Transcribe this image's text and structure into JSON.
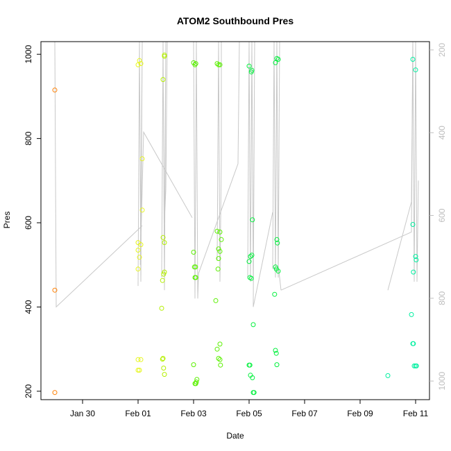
{
  "chart_data": {
    "type": "scatter",
    "title": "ATOM2 Southbound Pres",
    "xlabel": "Date",
    "ylabel": "Pres",
    "x_tick_labels": [
      "Jan 30",
      "Feb 01",
      "Feb 03",
      "Feb 05",
      "Feb 07",
      "Feb 09",
      "Feb 11"
    ],
    "x_tick_values": [
      0,
      2,
      4,
      6,
      8,
      10,
      12
    ],
    "y_tick_labels": [
      "200",
      "400",
      "600",
      "800",
      "1000"
    ],
    "y_tick_values": [
      200,
      400,
      600,
      800,
      1000
    ],
    "y2_tick_labels": [
      "200",
      "400",
      "600",
      "800",
      "1000"
    ],
    "y2_tick_values": [
      200,
      400,
      600,
      800,
      1000
    ],
    "xlim": [
      -1.5,
      12.5
    ],
    "ylim": [
      180,
      1030
    ],
    "y2lim": [
      1045,
      180
    ],
    "grid": false,
    "line_color": "#c8c8c8",
    "colors": {
      "orange": "#ff7f00",
      "yellow": "#e6f51e",
      "yellowgreen": "#b4f000",
      "green": "#5af000",
      "brightgreen": "#00f03c",
      "teal": "#00f0a0"
    },
    "points": [
      {
        "x": -1.0,
        "y": 915,
        "c": "orange"
      },
      {
        "x": -1.0,
        "y": 440,
        "c": "orange"
      },
      {
        "x": -1.0,
        "y": 197,
        "c": "orange"
      },
      {
        "x": 2.0,
        "y": 975,
        "c": "yellow"
      },
      {
        "x": 2.05,
        "y": 985,
        "c": "yellow"
      },
      {
        "x": 2.1,
        "y": 978,
        "c": "yellow"
      },
      {
        "x": 2.15,
        "y": 752,
        "c": "yellow"
      },
      {
        "x": 2.15,
        "y": 630,
        "c": "yellow"
      },
      {
        "x": 2.0,
        "y": 553,
        "c": "yellow"
      },
      {
        "x": 2.1,
        "y": 548,
        "c": "yellow"
      },
      {
        "x": 2.0,
        "y": 535,
        "c": "yellow"
      },
      {
        "x": 2.05,
        "y": 518,
        "c": "yellow"
      },
      {
        "x": 2.0,
        "y": 490,
        "c": "yellow"
      },
      {
        "x": 2.0,
        "y": 275,
        "c": "yellow"
      },
      {
        "x": 2.1,
        "y": 275,
        "c": "yellow"
      },
      {
        "x": 2.05,
        "y": 250,
        "c": "yellow"
      },
      {
        "x": 2.0,
        "y": 250,
        "c": "yellow"
      },
      {
        "x": 2.95,
        "y": 998,
        "c": "yellowgreen"
      },
      {
        "x": 2.95,
        "y": 995,
        "c": "yellowgreen"
      },
      {
        "x": 2.9,
        "y": 940,
        "c": "yellowgreen"
      },
      {
        "x": 2.9,
        "y": 565,
        "c": "yellowgreen"
      },
      {
        "x": 2.95,
        "y": 553,
        "c": "yellowgreen"
      },
      {
        "x": 2.95,
        "y": 483,
        "c": "yellowgreen"
      },
      {
        "x": 2.92,
        "y": 478,
        "c": "yellowgreen"
      },
      {
        "x": 2.88,
        "y": 463,
        "c": "yellowgreen"
      },
      {
        "x": 2.85,
        "y": 397,
        "c": "yellowgreen"
      },
      {
        "x": 2.9,
        "y": 278,
        "c": "yellowgreen"
      },
      {
        "x": 2.88,
        "y": 276,
        "c": "yellowgreen"
      },
      {
        "x": 2.92,
        "y": 255,
        "c": "yellowgreen"
      },
      {
        "x": 2.95,
        "y": 240,
        "c": "yellowgreen"
      },
      {
        "x": 4.0,
        "y": 980,
        "c": "green"
      },
      {
        "x": 4.05,
        "y": 975,
        "c": "green"
      },
      {
        "x": 4.08,
        "y": 978,
        "c": "green"
      },
      {
        "x": 4.0,
        "y": 530,
        "c": "green"
      },
      {
        "x": 4.03,
        "y": 495,
        "c": "green"
      },
      {
        "x": 4.07,
        "y": 495,
        "c": "green"
      },
      {
        "x": 4.05,
        "y": 470,
        "c": "green"
      },
      {
        "x": 4.08,
        "y": 470,
        "c": "green"
      },
      {
        "x": 4.0,
        "y": 263,
        "c": "green"
      },
      {
        "x": 4.12,
        "y": 228,
        "c": "green"
      },
      {
        "x": 4.1,
        "y": 222,
        "c": "green"
      },
      {
        "x": 4.08,
        "y": 218,
        "c": "green"
      },
      {
        "x": 4.05,
        "y": 218,
        "c": "green"
      },
      {
        "x": 4.85,
        "y": 978,
        "c": "green"
      },
      {
        "x": 4.9,
        "y": 975,
        "c": "green"
      },
      {
        "x": 4.95,
        "y": 975,
        "c": "green"
      },
      {
        "x": 4.85,
        "y": 580,
        "c": "green"
      },
      {
        "x": 4.95,
        "y": 578,
        "c": "green"
      },
      {
        "x": 5.0,
        "y": 560,
        "c": "green"
      },
      {
        "x": 4.9,
        "y": 538,
        "c": "green"
      },
      {
        "x": 4.95,
        "y": 532,
        "c": "green"
      },
      {
        "x": 4.9,
        "y": 515,
        "c": "green"
      },
      {
        "x": 4.88,
        "y": 490,
        "c": "green"
      },
      {
        "x": 4.8,
        "y": 415,
        "c": "green"
      },
      {
        "x": 4.95,
        "y": 312,
        "c": "green"
      },
      {
        "x": 4.85,
        "y": 300,
        "c": "green"
      },
      {
        "x": 4.9,
        "y": 278,
        "c": "green"
      },
      {
        "x": 4.95,
        "y": 275,
        "c": "green"
      },
      {
        "x": 4.97,
        "y": 262,
        "c": "green"
      },
      {
        "x": 6.0,
        "y": 972,
        "c": "brightgreen"
      },
      {
        "x": 6.1,
        "y": 962,
        "c": "brightgreen"
      },
      {
        "x": 6.08,
        "y": 958,
        "c": "brightgreen"
      },
      {
        "x": 6.12,
        "y": 607,
        "c": "brightgreen"
      },
      {
        "x": 6.1,
        "y": 523,
        "c": "brightgreen"
      },
      {
        "x": 6.05,
        "y": 520,
        "c": "brightgreen"
      },
      {
        "x": 6.0,
        "y": 508,
        "c": "brightgreen"
      },
      {
        "x": 6.03,
        "y": 470,
        "c": "brightgreen"
      },
      {
        "x": 6.08,
        "y": 468,
        "c": "brightgreen"
      },
      {
        "x": 6.15,
        "y": 358,
        "c": "brightgreen"
      },
      {
        "x": 6.0,
        "y": 262,
        "c": "brightgreen"
      },
      {
        "x": 6.03,
        "y": 262,
        "c": "brightgreen"
      },
      {
        "x": 6.05,
        "y": 238,
        "c": "brightgreen"
      },
      {
        "x": 6.12,
        "y": 232,
        "c": "brightgreen"
      },
      {
        "x": 6.15,
        "y": 197,
        "c": "brightgreen"
      },
      {
        "x": 6.18,
        "y": 197,
        "c": "brightgreen"
      },
      {
        "x": 7.0,
        "y": 990,
        "c": "brightgreen"
      },
      {
        "x": 7.05,
        "y": 988,
        "c": "brightgreen"
      },
      {
        "x": 6.95,
        "y": 980,
        "c": "brightgreen"
      },
      {
        "x": 7.0,
        "y": 560,
        "c": "brightgreen"
      },
      {
        "x": 7.02,
        "y": 552,
        "c": "brightgreen"
      },
      {
        "x": 6.95,
        "y": 495,
        "c": "brightgreen"
      },
      {
        "x": 6.98,
        "y": 490,
        "c": "brightgreen"
      },
      {
        "x": 7.05,
        "y": 485,
        "c": "brightgreen"
      },
      {
        "x": 6.92,
        "y": 430,
        "c": "brightgreen"
      },
      {
        "x": 6.95,
        "y": 297,
        "c": "brightgreen"
      },
      {
        "x": 6.98,
        "y": 290,
        "c": "brightgreen"
      },
      {
        "x": 7.0,
        "y": 263,
        "c": "brightgreen"
      },
      {
        "x": 11.9,
        "y": 988,
        "c": "teal"
      },
      {
        "x": 12.0,
        "y": 963,
        "c": "teal"
      },
      {
        "x": 11.9,
        "y": 596,
        "c": "teal"
      },
      {
        "x": 12.0,
        "y": 520,
        "c": "teal"
      },
      {
        "x": 12.02,
        "y": 512,
        "c": "teal"
      },
      {
        "x": 11.92,
        "y": 483,
        "c": "teal"
      },
      {
        "x": 11.85,
        "y": 382,
        "c": "teal"
      },
      {
        "x": 11.9,
        "y": 313,
        "c": "teal"
      },
      {
        "x": 11.92,
        "y": 313,
        "c": "teal"
      },
      {
        "x": 11.95,
        "y": 260,
        "c": "teal"
      },
      {
        "x": 12.0,
        "y": 260,
        "c": "teal"
      },
      {
        "x": 12.03,
        "y": 260,
        "c": "teal"
      },
      {
        "x": 11.0,
        "y": 237,
        "c": "teal"
      }
    ],
    "profiles": [
      [
        [
          -1.0,
          1030
        ],
        [
          -0.95,
          400
        ],
        [
          2.15,
          593
        ]
      ],
      [
        [
          2.0,
          450
        ],
        [
          2.05,
          1030
        ],
        [
          2.1,
          460
        ],
        [
          2.15,
          1030
        ],
        [
          2.08,
          500
        ],
        [
          2.2,
          815
        ],
        [
          3.95,
          612
        ]
      ],
      [
        [
          2.85,
          470
        ],
        [
          2.9,
          1030
        ],
        [
          2.95,
          440
        ],
        [
          3.0,
          1030
        ],
        [
          2.95,
          600
        ],
        [
          3.0,
          680
        ],
        [
          3.05,
          1030
        ]
      ],
      [
        [
          4.0,
          1030
        ],
        [
          4.05,
          420
        ],
        [
          4.1,
          1030
        ],
        [
          4.15,
          420
        ],
        [
          4.18,
          480
        ],
        [
          5.6,
          740
        ],
        [
          5.65,
          1030
        ]
      ],
      [
        [
          4.85,
          510
        ],
        [
          4.9,
          1030
        ],
        [
          4.95,
          460
        ],
        [
          5.0,
          750
        ],
        [
          5.0,
          1030
        ]
      ],
      [
        [
          5.95,
          470
        ],
        [
          6.0,
          1030
        ],
        [
          6.05,
          460
        ],
        [
          6.1,
          1030
        ],
        [
          6.15,
          460
        ],
        [
          6.2,
          1030
        ],
        [
          6.15,
          400
        ],
        [
          6.85,
          625
        ]
      ],
      [
        [
          6.85,
          490
        ],
        [
          6.9,
          1030
        ],
        [
          6.95,
          470
        ],
        [
          7.0,
          1030
        ],
        [
          7.05,
          470
        ],
        [
          7.1,
          1030
        ],
        [
          7.05,
          500
        ],
        [
          7.15,
          440
        ]
      ],
      [
        [
          7.15,
          440
        ],
        [
          11.85,
          578
        ],
        [
          11.9,
          1030
        ],
        [
          11.95,
          460
        ],
        [
          12.0,
          1030
        ],
        [
          12.05,
          460
        ],
        [
          12.1,
          700
        ]
      ],
      [
        [
          11.0,
          440
        ],
        [
          11.85,
          650
        ],
        [
          11.9,
          1030
        ]
      ]
    ]
  }
}
